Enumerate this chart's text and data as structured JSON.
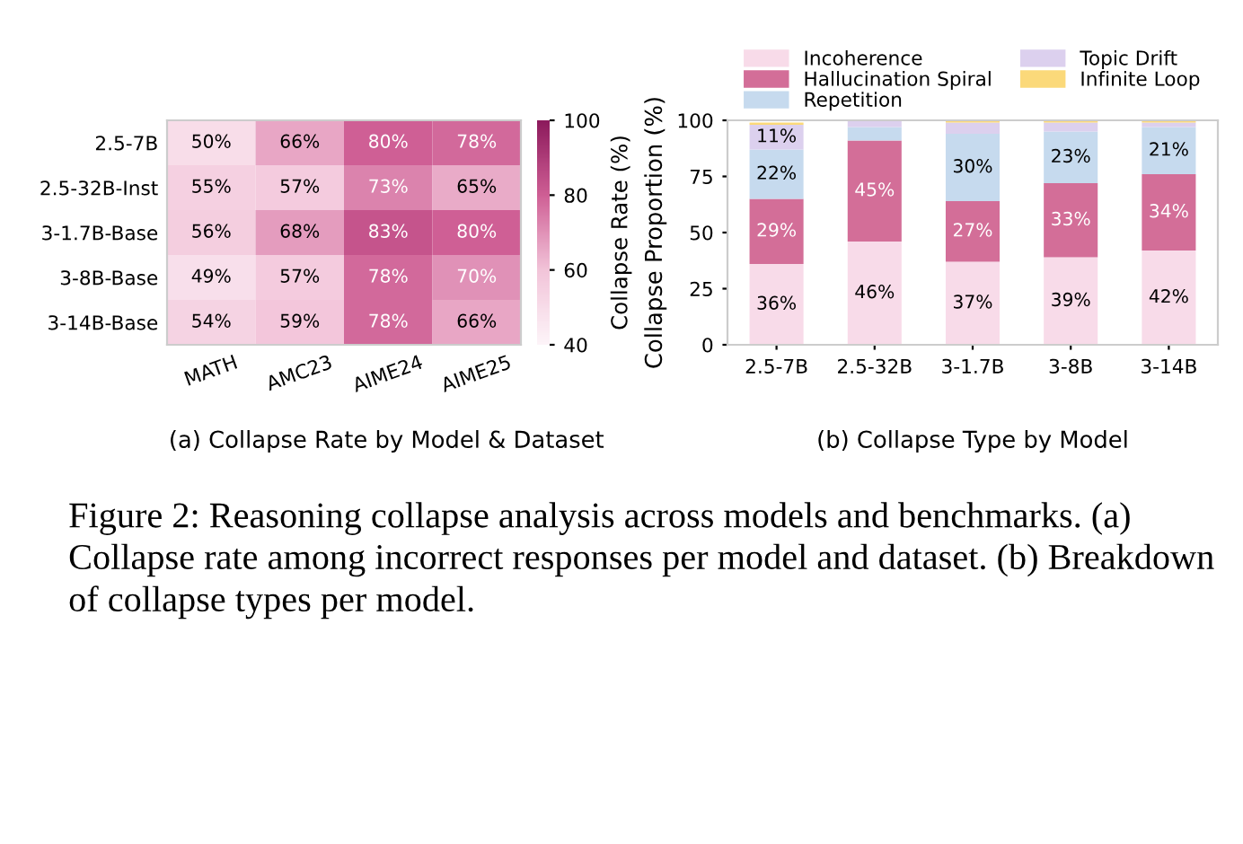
{
  "chart_data": [
    {
      "type": "heatmap",
      "title": "(a) Collapse Rate by Model & Dataset",
      "clabel": "Collapse Rate (%)",
      "categories": [
        "MATH",
        "AMC23",
        "AIME24",
        "AIME25"
      ],
      "y_categories": [
        "2.5-7B",
        "2.5-32B-Inst",
        "3-1.7B-Base",
        "3-8B-Base",
        "3-14B-Base"
      ],
      "cells": [
        [
          50,
          66,
          80,
          78
        ],
        [
          55,
          57,
          73,
          65
        ],
        [
          56,
          68,
          83,
          80
        ],
        [
          49,
          57,
          78,
          70
        ],
        [
          54,
          59,
          78,
          66
        ]
      ],
      "cell_labels": [
        [
          "50%",
          "66%",
          "80%",
          "78%"
        ],
        [
          "55%",
          "57%",
          "73%",
          "65%"
        ],
        [
          "56%",
          "68%",
          "83%",
          "80%"
        ],
        [
          "49%",
          "57%",
          "78%",
          "70%"
        ],
        [
          "54%",
          "59%",
          "78%",
          "66%"
        ]
      ],
      "clim": [
        40,
        100
      ],
      "cticks": [
        40,
        60,
        80,
        100
      ],
      "annotations": [
        "Figure 2: Reasoning collapse analysis across models and benchmarks. (a) Collapse rate among incorrect responses per model and dataset. (b) Breakdown of collapse types per model."
      ]
    },
    {
      "type": "bar",
      "stacked": true,
      "title": "(b) Collapse Type by Model",
      "ylabel": "Collapse Proportion (%)",
      "categories": [
        "2.5-7B",
        "2.5-32B",
        "3-1.7B",
        "3-8B",
        "3-14B"
      ],
      "series": [
        {
          "name": "Incoherence",
          "color": "#f8dbe9",
          "values": [
            36,
            46,
            37,
            39,
            42
          ],
          "value_labels": [
            "36%",
            "46%",
            "37%",
            "39%",
            "42%"
          ]
        },
        {
          "name": "Hallucination Spiral",
          "color": "#d36e98",
          "values": [
            29,
            45,
            27,
            33,
            34
          ],
          "value_labels": [
            "29%",
            "45%",
            "27%",
            "33%",
            "34%"
          ]
        },
        {
          "name": "Repetition",
          "color": "#c6daee",
          "values": [
            22,
            6,
            30,
            23,
            21
          ],
          "value_labels": [
            "22%",
            null,
            "30%",
            "23%",
            "21%"
          ]
        },
        {
          "name": "Topic Drift",
          "color": "#dcd0ee",
          "values": [
            11,
            3,
            5,
            4,
            2
          ],
          "value_labels": [
            "11%",
            null,
            null,
            null,
            null
          ]
        },
        {
          "name": "Infinite Loop",
          "color": "#fbd97a",
          "values": [
            1,
            0,
            1,
            1,
            1
          ],
          "value_labels": [
            null,
            null,
            null,
            null,
            null
          ]
        }
      ],
      "ylim": [
        0,
        100
      ],
      "yticks": [
        0,
        25,
        50,
        75,
        100
      ],
      "legend": "top",
      "grid": false
    }
  ]
}
